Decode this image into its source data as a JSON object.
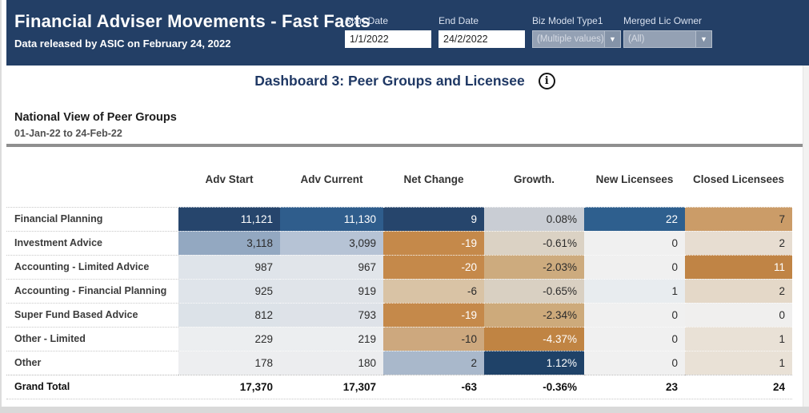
{
  "header": {
    "title": "Financial Adviser Movements - Fast Facts",
    "subtitle": "Data released by ASIC on February 24, 2022",
    "bg_color": "#233f66",
    "filters": {
      "start_date": {
        "label": "Start Date",
        "value": "1/1/2022"
      },
      "end_date": {
        "label": "End Date",
        "value": "24/2/2022"
      },
      "biz_model": {
        "label": "Biz Model Type1",
        "value": "(Multiple values)"
      },
      "merged_lic_owner": {
        "label": "Merged Lic Owner",
        "value": "(All)"
      }
    },
    "dropdown_arrow_glyph": "▼"
  },
  "dashboard": {
    "heading": "Dashboard 3: Peer Groups and Licensee",
    "heading_color": "#1f3864",
    "info_icon_glyph": "i"
  },
  "section": {
    "title": "National View of Peer Groups",
    "subtitle": "01-Jan-22 to 24-Feb-22"
  },
  "table": {
    "columns": [
      "Adv Start",
      "Adv Current",
      "Net Change",
      "Growth.",
      "New Licensees",
      "Closed Licensees"
    ],
    "rows": [
      {
        "label": "Financial Planning",
        "values": [
          "11,121",
          "11,130",
          "9",
          "0.08%",
          "22",
          "7"
        ],
        "bg": [
          "#26456c",
          "#2f5d8c",
          "#26456c",
          "#c9cdd4",
          "#2e5f8e",
          "#cb9c68"
        ],
        "fg": [
          "#ffffff",
          "#ffffff",
          "#ffffff",
          "#2b2b2b",
          "#ffffff",
          "#2b2b2b"
        ]
      },
      {
        "label": "Investment Advice",
        "values": [
          "3,118",
          "3,099",
          "-19",
          "-0.61%",
          "0",
          "2"
        ],
        "bg": [
          "#93a8c1",
          "#b6c3d5",
          "#c5894a",
          "#dbd2c4",
          "#f0f0f0",
          "#e7ddd1"
        ],
        "fg": [
          "#2b2b2b",
          "#2b2b2b",
          "#ffffff",
          "#2b2b2b",
          "#2b2b2b",
          "#2b2b2b"
        ]
      },
      {
        "label": "Accounting - Limited Advice",
        "values": [
          "987",
          "967",
          "-20",
          "-2.03%",
          "0",
          "11"
        ],
        "bg": [
          "#dfe4ea",
          "#e1e5ea",
          "#c5894a",
          "#cdab7e",
          "#f0f0f0",
          "#c08445"
        ],
        "fg": [
          "#2b2b2b",
          "#2b2b2b",
          "#ffffff",
          "#2b2b2b",
          "#2b2b2b",
          "#ffffff"
        ]
      },
      {
        "label": "Accounting - Financial Planning",
        "values": [
          "925",
          "919",
          "-6",
          "-0.65%",
          "1",
          "2"
        ],
        "bg": [
          "#dfe4ea",
          "#e0e4e9",
          "#d9c3a5",
          "#d9d0c2",
          "#e8ecef",
          "#e4d8c8"
        ],
        "fg": [
          "#2b2b2b",
          "#2b2b2b",
          "#2b2b2b",
          "#2b2b2b",
          "#2b2b2b",
          "#2b2b2b"
        ]
      },
      {
        "label": "Super Fund Based Advice",
        "values": [
          "812",
          "793",
          "-19",
          "-2.34%",
          "0",
          "0"
        ],
        "bg": [
          "#dce2e8",
          "#dee2e8",
          "#c5894a",
          "#cdaa7b",
          "#f0f0f0",
          "#f0efee"
        ],
        "fg": [
          "#2b2b2b",
          "#2b2b2b",
          "#ffffff",
          "#2b2b2b",
          "#2b2b2b",
          "#2b2b2b"
        ]
      },
      {
        "label": "Other - Limited",
        "values": [
          "229",
          "219",
          "-10",
          "-4.37%",
          "0",
          "1"
        ],
        "bg": [
          "#eceef0",
          "#eceef0",
          "#cda87e",
          "#c08443",
          "#f0f0f0",
          "#e9e1d6"
        ],
        "fg": [
          "#2b2b2b",
          "#2b2b2b",
          "#2b2b2b",
          "#ffffff",
          "#2b2b2b",
          "#2b2b2b"
        ]
      },
      {
        "label": "Other",
        "values": [
          "178",
          "180",
          "2",
          "1.12%",
          "0",
          "1"
        ],
        "bg": [
          "#edeef0",
          "#ecedef",
          "#a9b8cb",
          "#1f4268",
          "#f0f0f0",
          "#e9e1d6"
        ],
        "fg": [
          "#2b2b2b",
          "#2b2b2b",
          "#2b2b2b",
          "#ffffff",
          "#2b2b2b",
          "#2b2b2b"
        ]
      }
    ],
    "grand_total": {
      "label": "Grand Total",
      "values": [
        "17,370",
        "17,307",
        "-63",
        "-0.36%",
        "23",
        "24"
      ]
    }
  }
}
